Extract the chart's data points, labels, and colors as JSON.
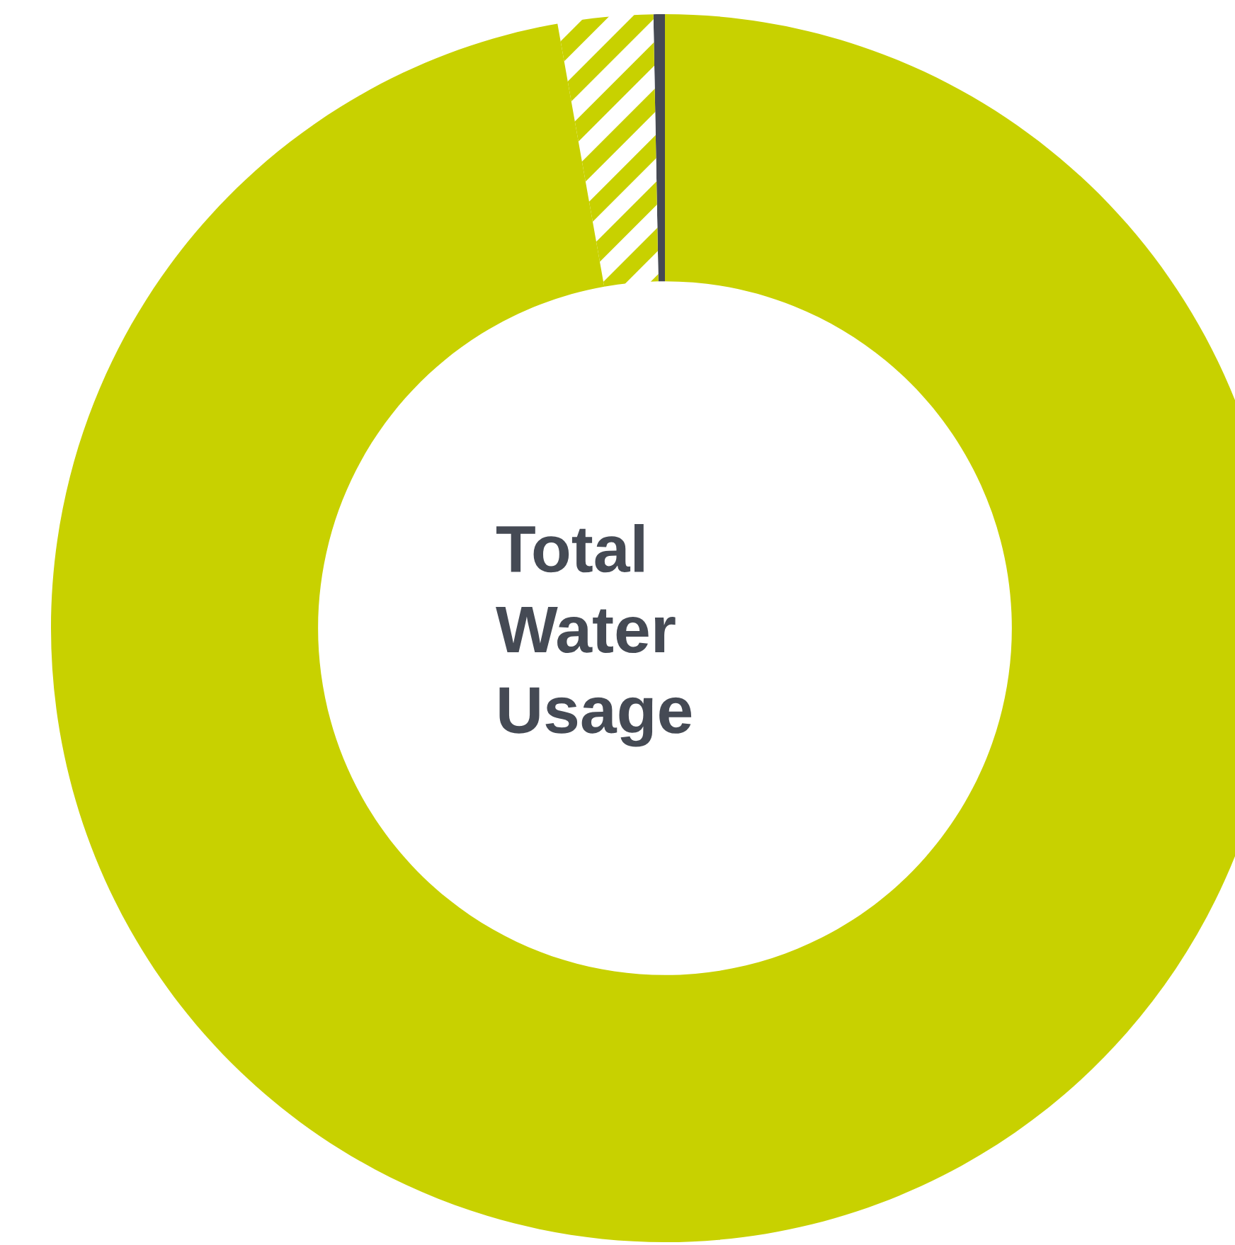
{
  "chart_data": {
    "type": "donut",
    "title": "Total\nWater\nUsage",
    "categories": [
      null,
      null,
      null
    ],
    "values": [
      0.3,
      2.5,
      97.2
    ],
    "colors": [
      "#464a54",
      "#c8d100",
      "#c8d100"
    ]
  }
}
